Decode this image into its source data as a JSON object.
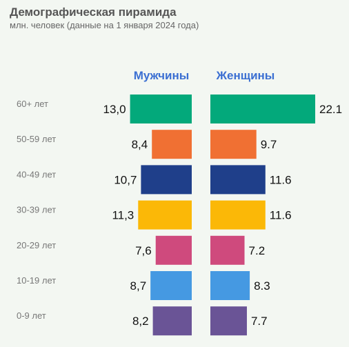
{
  "title": "Демографическая пирамида",
  "subtitle": "млн. человек (данные на 1 января 2024 года)",
  "chart_data": {
    "type": "bar",
    "orientation": "horizontal-pyramid",
    "categories": [
      "60+ лет",
      "50-59 лет",
      "40-49 лет",
      "30-39 лет",
      "20-29 лет",
      "10-19 лет",
      "0-9 лет"
    ],
    "series": [
      {
        "name": "Мужчины",
        "side": "left",
        "values": [
          13.0,
          8.4,
          10.7,
          11.3,
          7.6,
          8.7,
          8.2
        ],
        "labels": [
          "13,0",
          "8,4",
          "10,7",
          "11,3",
          "7,6",
          "8,7",
          "8,2"
        ]
      },
      {
        "name": "Женщины",
        "side": "right",
        "values": [
          22.1,
          9.7,
          11.6,
          11.6,
          7.2,
          8.3,
          7.7
        ],
        "labels": [
          "22.1",
          "9.7",
          "11.6",
          "11.6",
          "7.2",
          "8.3",
          "7.7"
        ]
      }
    ],
    "colors": [
      "#03a97b",
      "#f07033",
      "#1f3f8a",
      "#fbb807",
      "#cf4a7d",
      "#4599e2",
      "#6a5496"
    ],
    "series_label_color": "#3b6fd2",
    "grid": false
  }
}
